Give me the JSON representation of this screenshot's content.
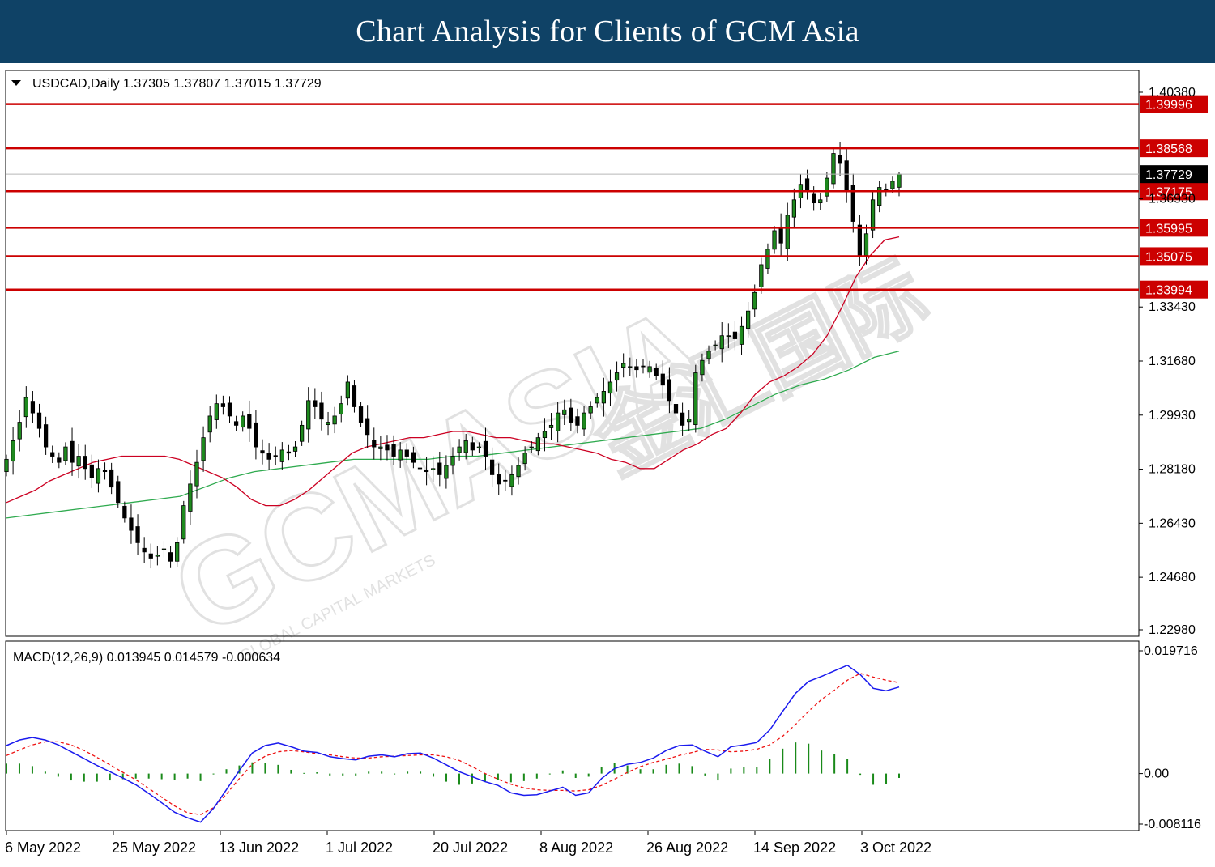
{
  "banner": {
    "title": "Chart Analysis for Clients of GCM Asia"
  },
  "watermark": {
    "text": "GCMASIA",
    "subtext": "GLOBAL CAPITAL MARKETS",
    "chinese": "金汇国际"
  },
  "colors": {
    "banner": "#0f4266",
    "bull": "#1e8a1e",
    "bear": "#cc0000",
    "ma_red": "#cc0022",
    "ma_green": "#2faa4f",
    "macd": "#1a1aee",
    "signal": "#ee1111",
    "hist": "#1a8a1a"
  },
  "chart_data": [
    {
      "type": "candlestick",
      "symbol": "USDCAD,Daily",
      "header": "USDCAD,Daily  1.37305 1.37807 1.37015 1.37729",
      "ohlc_last": {
        "open": 1.37305,
        "high": 1.37807,
        "low": 1.37015,
        "close": 1.37729
      },
      "y_ticks": [
        "1.40380",
        "1.36930",
        "1.33430",
        "1.31680",
        "1.29930",
        "1.28180",
        "1.26430",
        "1.24680",
        "1.22980"
      ],
      "x_ticks": [
        "6 May 2022",
        "25 May 2022",
        "13 Jun 2022",
        "1 Jul 2022",
        "20 Jul 2022",
        "8 Aug 2022",
        "26 Aug 2022",
        "14 Sep 2022",
        "3 Oct 2022"
      ],
      "ylim": [
        1.2298,
        1.4038
      ],
      "levels": [
        {
          "value": 1.39996,
          "label": "1.39996"
        },
        {
          "value": 1.38568,
          "label": "1.38568"
        },
        {
          "value": 1.37175,
          "label": "1.37175"
        },
        {
          "value": 1.35995,
          "label": "1.35995"
        },
        {
          "value": 1.35075,
          "label": "1.35075"
        },
        {
          "value": 1.33994,
          "label": "1.33994"
        }
      ],
      "price_line": {
        "value": 1.37729,
        "label": "1.37729"
      },
      "close_series": [
        1.285,
        1.291,
        1.297,
        1.305,
        1.3,
        1.295,
        1.289,
        1.286,
        1.284,
        1.289,
        1.284,
        1.286,
        1.282,
        1.279,
        1.282,
        1.281,
        1.276,
        1.271,
        1.266,
        1.262,
        1.258,
        1.255,
        1.253,
        1.254,
        1.256,
        1.252,
        1.258,
        1.27,
        1.277,
        1.284,
        1.292,
        1.299,
        1.303,
        1.302,
        1.299,
        1.296,
        1.299,
        1.295,
        1.289,
        1.287,
        1.285,
        1.286,
        1.288,
        1.287,
        1.289,
        1.296,
        1.304,
        1.302,
        1.298,
        1.297,
        1.299,
        1.303,
        1.31,
        1.302,
        1.297,
        1.293,
        1.289,
        1.289,
        1.288,
        1.286,
        1.288,
        1.286,
        1.284,
        1.282,
        1.281,
        1.282,
        1.28,
        1.283,
        1.286,
        1.289,
        1.291,
        1.288,
        1.289,
        1.286,
        1.28,
        1.277,
        1.278,
        1.28,
        1.283,
        1.287,
        1.289,
        1.292,
        1.294,
        1.296,
        1.3,
        1.301,
        1.297,
        1.296,
        1.3,
        1.302,
        1.305,
        1.307,
        1.31,
        1.313,
        1.316,
        1.315,
        1.314,
        1.315,
        1.315,
        1.312,
        1.309,
        1.304,
        1.3,
        1.296,
        1.298,
        1.313,
        1.317,
        1.32,
        1.322,
        1.325,
        1.325,
        1.324,
        1.328,
        1.333,
        1.339,
        1.348,
        1.353,
        1.359,
        1.355,
        1.364,
        1.369,
        1.374,
        1.372,
        1.368,
        1.369,
        1.376,
        1.384,
        1.381,
        1.372,
        1.362,
        1.351,
        1.358,
        1.369,
        1.373,
        1.372,
        1.375,
        1.37729
      ],
      "ma_short_approx": [
        1.271,
        1.273,
        1.275,
        1.278,
        1.28,
        1.282,
        1.284,
        1.285,
        1.286,
        1.286,
        1.286,
        1.286,
        1.285,
        1.283,
        1.281,
        1.279,
        1.276,
        1.272,
        1.27,
        1.27,
        1.272,
        1.275,
        1.279,
        1.283,
        1.287,
        1.289,
        1.29,
        1.291,
        1.292,
        1.292,
        1.293,
        1.294,
        1.294,
        1.293,
        1.292,
        1.292,
        1.291,
        1.29,
        1.29,
        1.289,
        1.288,
        1.287,
        1.285,
        1.284,
        1.282,
        1.282,
        1.285,
        1.288,
        1.29,
        1.293,
        1.295,
        1.3,
        1.306,
        1.31,
        1.312,
        1.315,
        1.319,
        1.325,
        1.334,
        1.344,
        1.351,
        1.356,
        1.357
      ],
      "ma_long_approx": [
        1.266,
        1.267,
        1.268,
        1.269,
        1.27,
        1.271,
        1.272,
        1.273,
        1.276,
        1.279,
        1.281,
        1.282,
        1.283,
        1.284,
        1.285,
        1.285,
        1.285,
        1.285,
        1.286,
        1.286,
        1.287,
        1.288,
        1.289,
        1.29,
        1.291,
        1.292,
        1.293,
        1.294,
        1.295,
        1.298,
        1.302,
        1.306,
        1.309,
        1.311,
        1.314,
        1.318,
        1.32
      ]
    },
    {
      "type": "line",
      "title": "MACD(12,26,9) 0.013945 0.014579 -0.000634",
      "values_last": {
        "macd": 0.013945,
        "signal": 0.014579,
        "histogram": -0.000634
      },
      "y_ticks": [
        "0.019716",
        "0.00",
        "-0.008116"
      ],
      "ylim": [
        -0.008116,
        0.019716
      ],
      "macd": [
        0.0045,
        0.0054,
        0.0058,
        0.0054,
        0.0046,
        0.0035,
        0.0024,
        0.0013,
        0.0003,
        -0.0007,
        -0.0018,
        -0.0032,
        -0.0047,
        -0.0062,
        -0.0071,
        -0.0078,
        -0.0056,
        -0.0026,
        0.0005,
        0.0033,
        0.0045,
        0.0049,
        0.0043,
        0.0036,
        0.0034,
        0.0027,
        0.0024,
        0.0022,
        0.0028,
        0.003,
        0.0027,
        0.0032,
        0.0033,
        0.0025,
        0.0014,
        0.0003,
        -0.0005,
        -0.0013,
        -0.0019,
        -0.0031,
        -0.0035,
        -0.0034,
        -0.0028,
        -0.0022,
        -0.0035,
        -0.0031,
        -0.0008,
        0.0008,
        0.0015,
        0.0018,
        0.0025,
        0.0037,
        0.0045,
        0.0046,
        0.0036,
        0.0027,
        0.0043,
        0.0046,
        0.005,
        0.007,
        0.01,
        0.0129,
        0.0148,
        0.0156,
        0.0165,
        0.0174,
        0.0159,
        0.0137,
        0.0133,
        0.0139
      ],
      "signal": [
        0.0029,
        0.0038,
        0.0046,
        0.0051,
        0.0051,
        0.0046,
        0.0037,
        0.0026,
        0.0014,
        0.0002,
        -0.001,
        -0.0024,
        -0.0038,
        -0.0052,
        -0.0063,
        -0.0066,
        -0.0055,
        -0.0033,
        -0.0008,
        0.0015,
        0.0028,
        0.0035,
        0.0037,
        0.0035,
        0.0032,
        0.003,
        0.0027,
        0.0025,
        0.0025,
        0.0027,
        0.0028,
        0.0029,
        0.003,
        0.003,
        0.0027,
        0.0021,
        0.0011,
        0.0,
        -0.0009,
        -0.0017,
        -0.0023,
        -0.0026,
        -0.0027,
        -0.0027,
        -0.0028,
        -0.0026,
        -0.0019,
        -0.0009,
        0.0002,
        0.0011,
        0.0018,
        0.0023,
        0.0029,
        0.0034,
        0.0039,
        0.0038,
        0.0035,
        0.0036,
        0.0039,
        0.0046,
        0.006,
        0.0079,
        0.01,
        0.0119,
        0.0134,
        0.015,
        0.0161,
        0.0155,
        0.015,
        0.0146
      ]
    }
  ]
}
